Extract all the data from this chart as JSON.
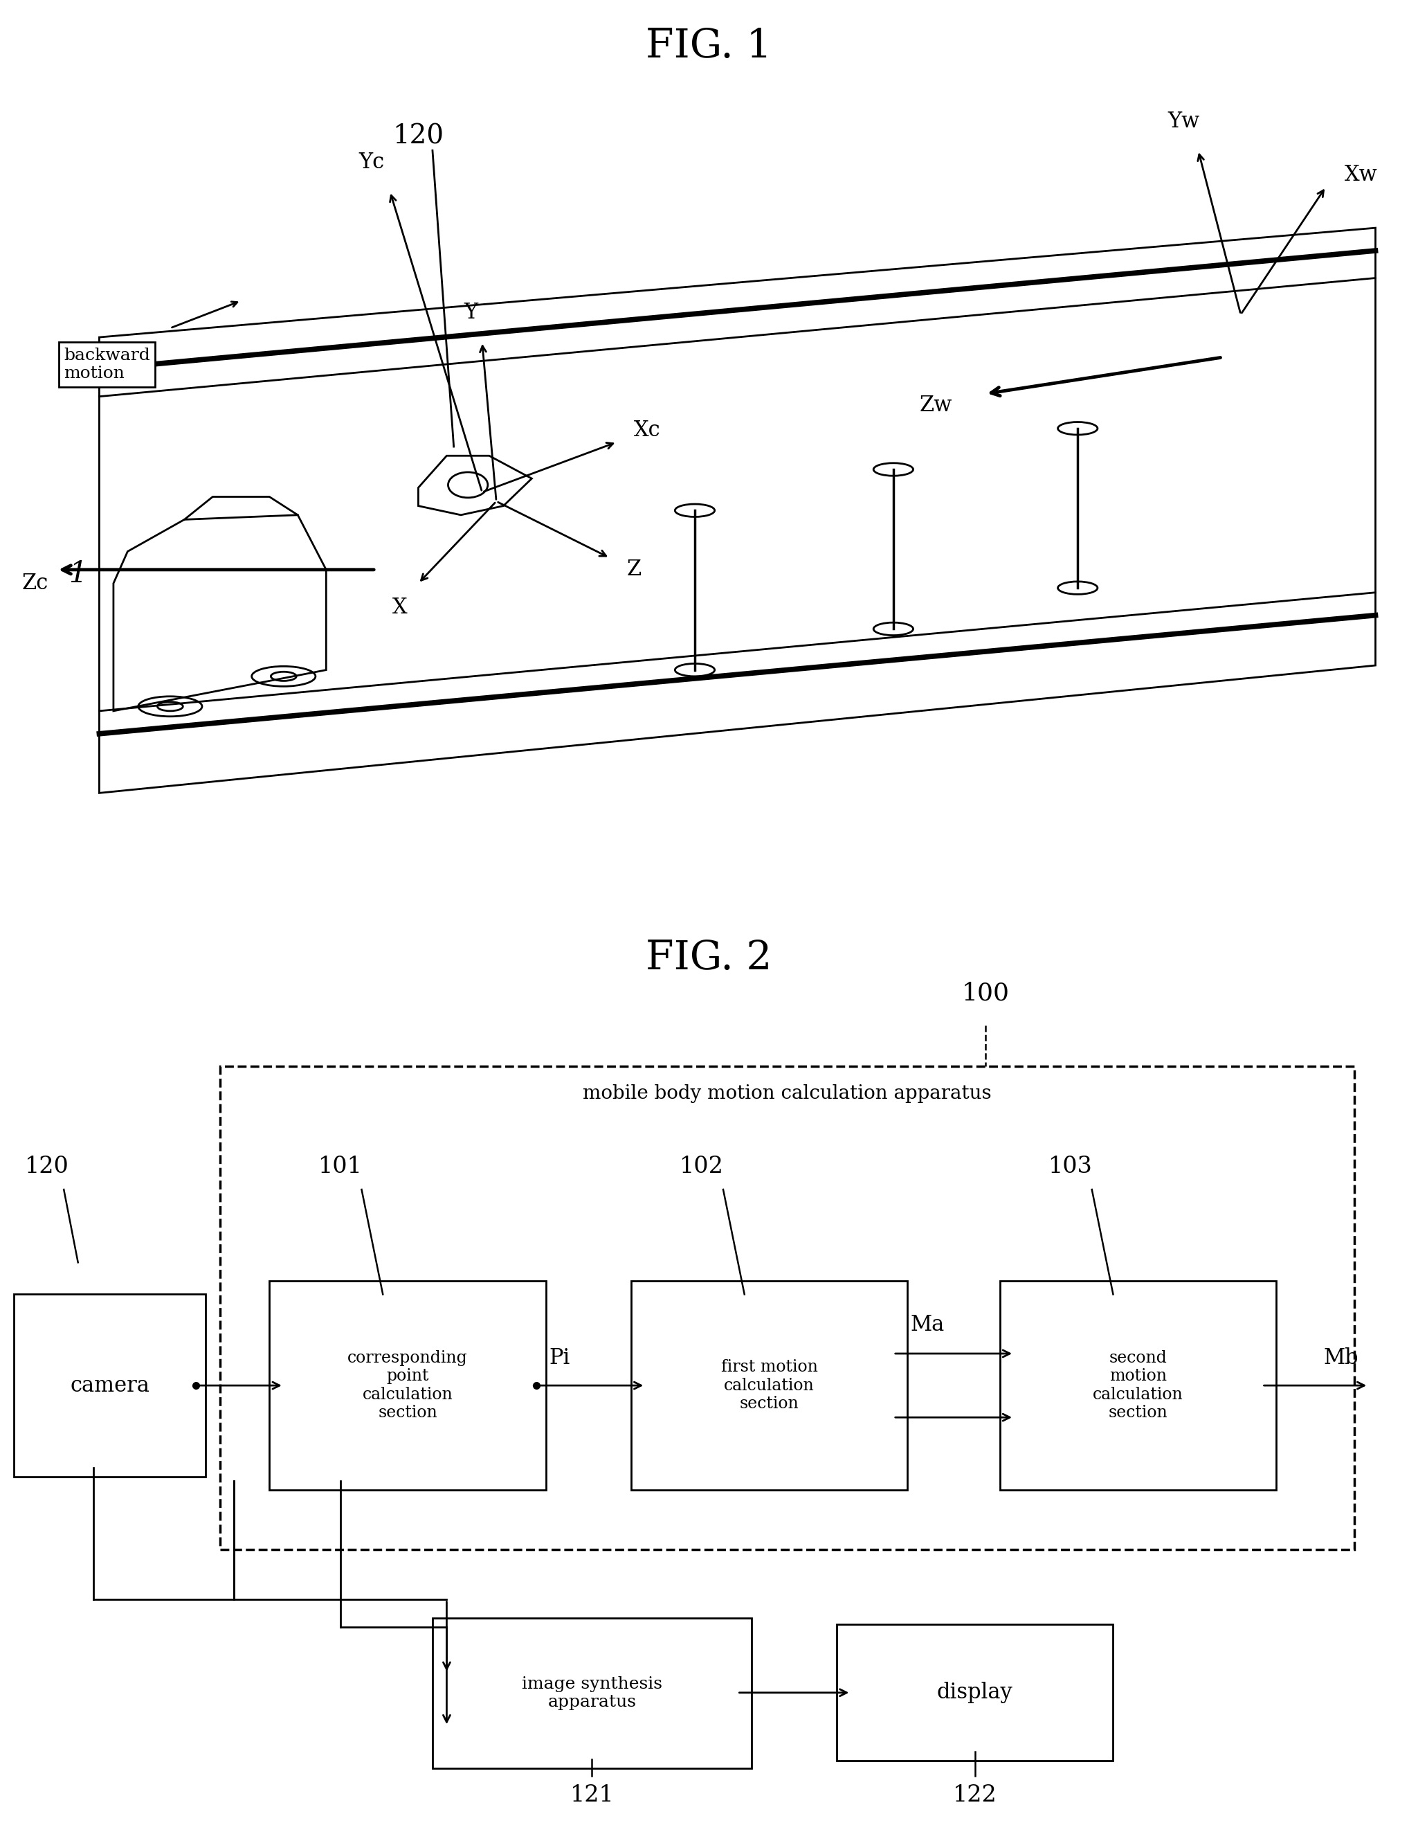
{
  "fig1_title": "FIG. 1",
  "fig2_title": "FIG. 2",
  "bg_color": "#ffffff",
  "line_color": "#000000",
  "fig1_label_120": "120",
  "fig1_label_1": "1",
  "fig1_label_backward": "backward\nmotion",
  "fig1_label_Yc": "Yc",
  "fig1_label_Xc": "Xc",
  "fig1_label_Zc": "Zc",
  "fig1_label_Y": "Y",
  "fig1_label_X": "X",
  "fig1_label_Z": "Z",
  "fig1_label_Yw": "Yw",
  "fig1_label_Xw": "Xw",
  "fig1_label_Zw": "Zw",
  "fig2_label_100": "100",
  "fig2_label_120": "120",
  "fig2_label_101": "101",
  "fig2_label_102": "102",
  "fig2_label_103": "103",
  "fig2_label_121": "121",
  "fig2_label_122": "122",
  "fig2_label_camera": "camera",
  "fig2_label_Pi": "Pi",
  "fig2_label_Ma": "Ma",
  "fig2_label_Mb": "Mb",
  "fig2_box_mobile": "mobile body motion calculation apparatus",
  "fig2_box_corr": "corresponding\npoint\ncalculation\nsection",
  "fig2_box_first": "first motion\ncalculation\nsection",
  "fig2_box_second": "second\nmotion\ncalculation\nsection",
  "fig2_box_image": "image synthesis\napparatus",
  "fig2_box_display": "display"
}
